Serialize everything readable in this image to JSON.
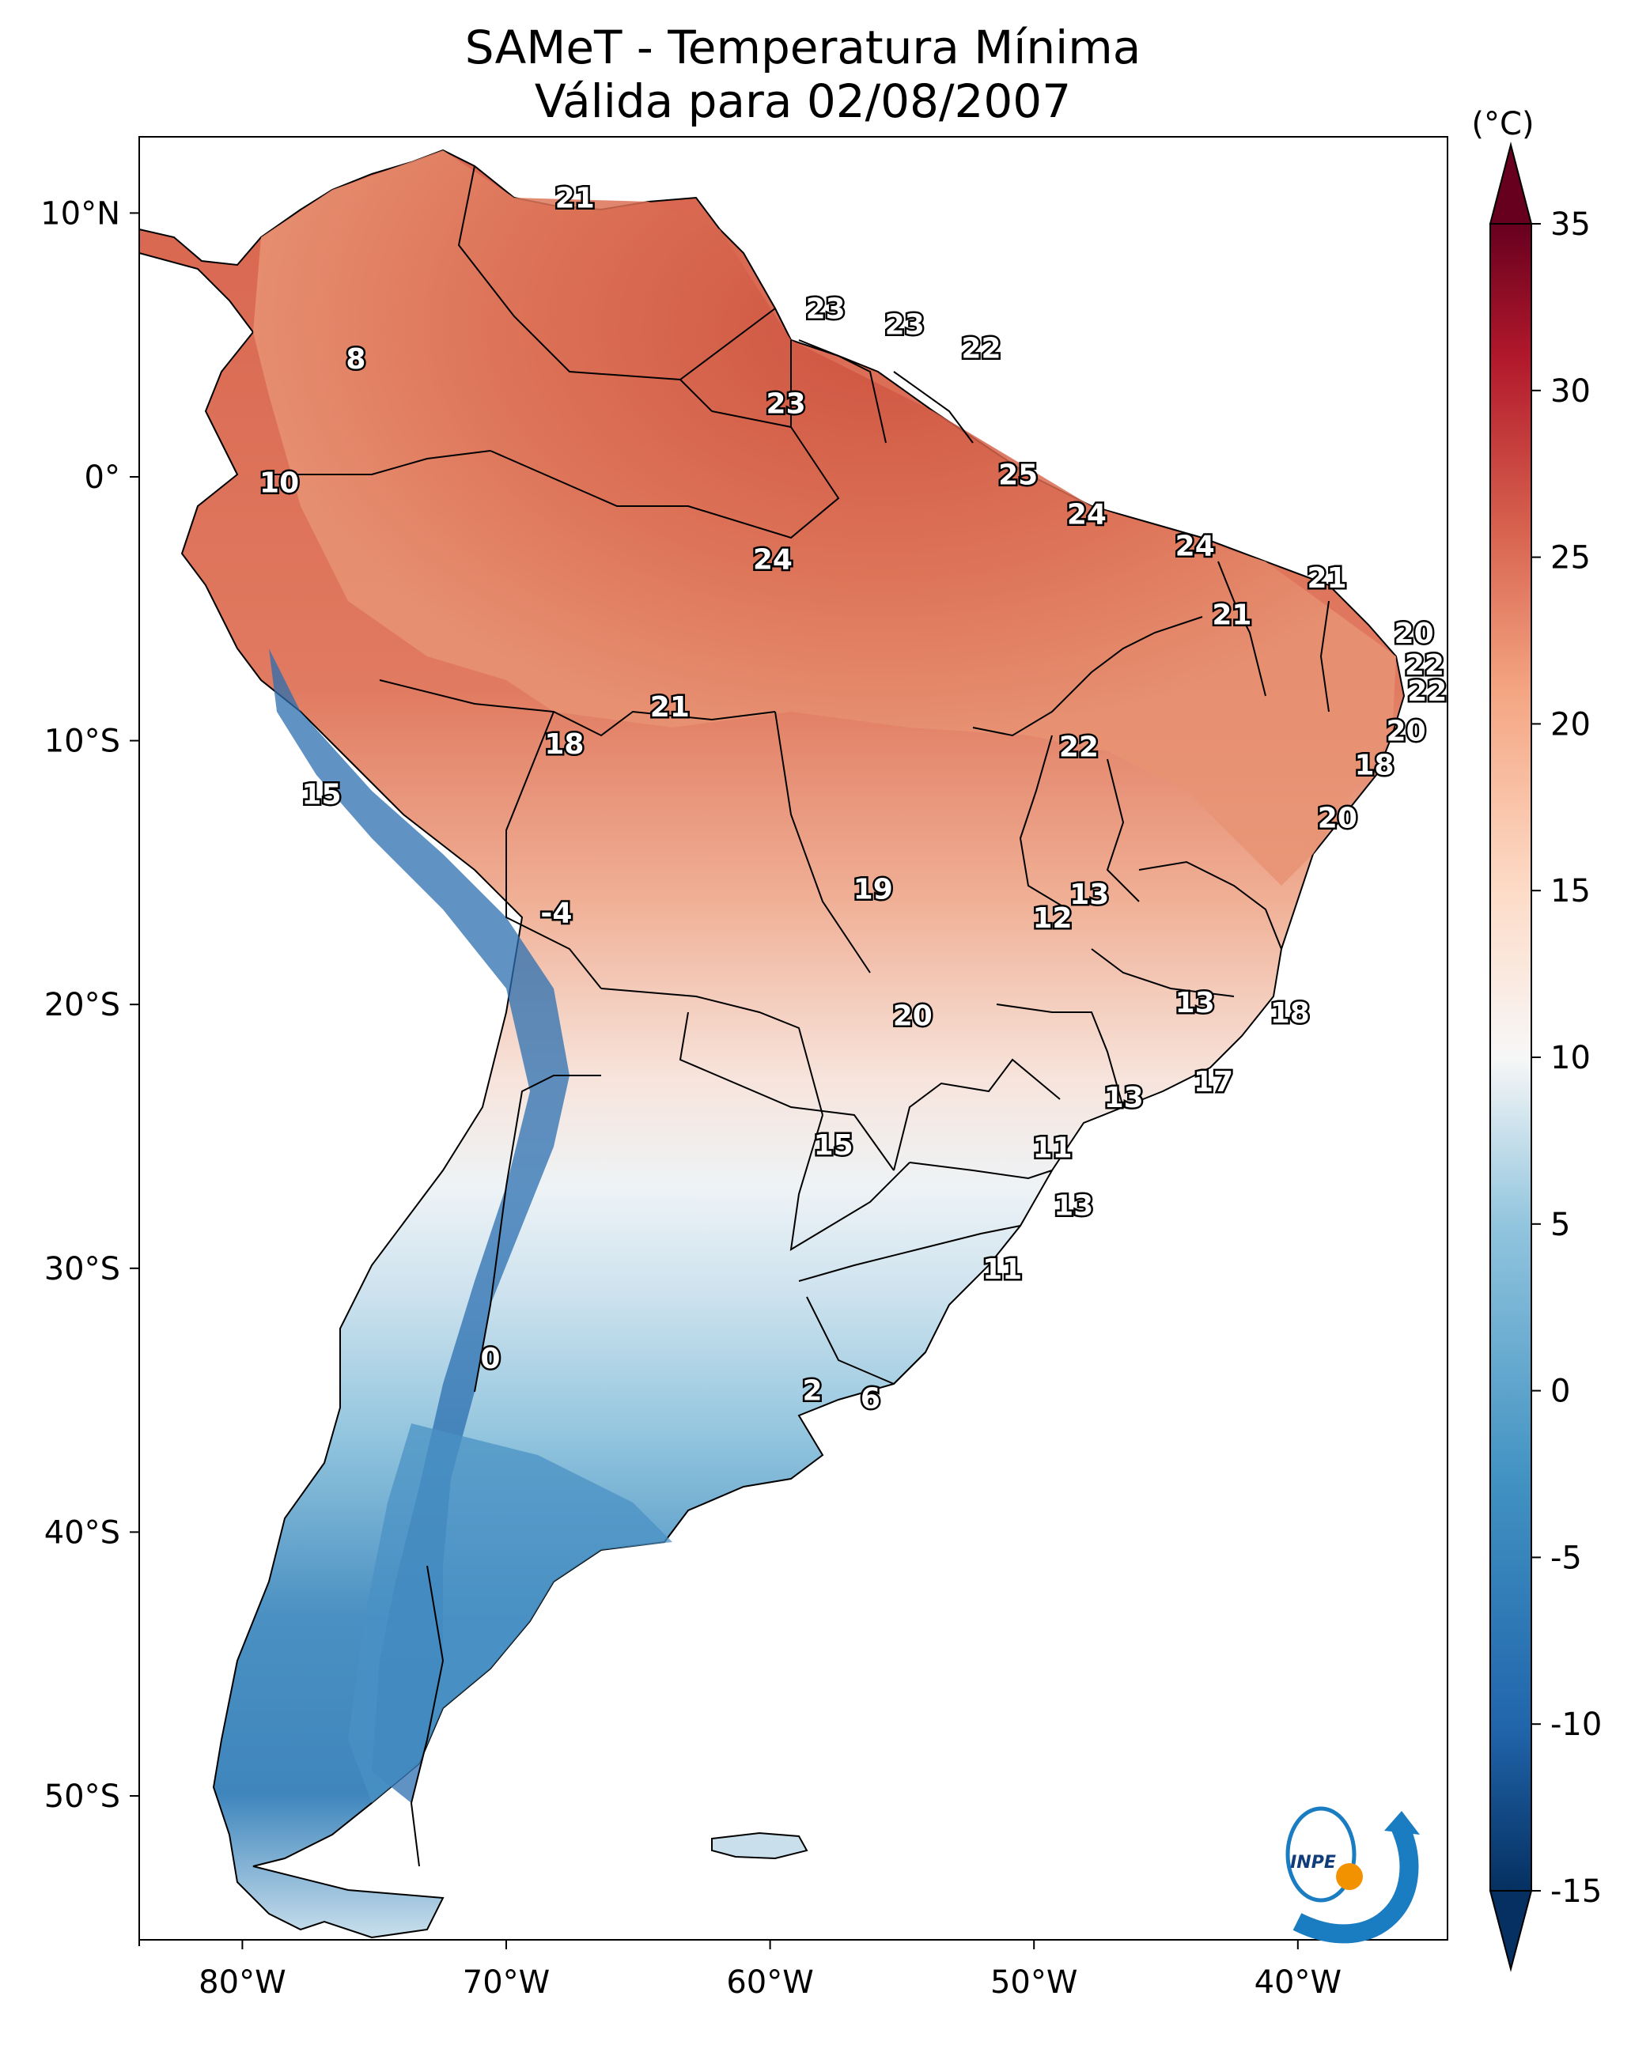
{
  "title": {
    "line1": "SAMeT - Temperatura Mínima",
    "line2": "Válida para 02/08/2007"
  },
  "colorbar": {
    "unit": "(°C)",
    "ticks": [
      "35",
      "30",
      "25",
      "20",
      "15",
      "10",
      "5",
      "0",
      "-5",
      "-10",
      "-15"
    ],
    "range": [
      -15,
      35
    ]
  },
  "axes": {
    "lon_ticks": [
      "80°W",
      "70°W",
      "60°W",
      "50°W",
      "40°W"
    ],
    "lat_ticks": [
      "10°N",
      "0°",
      "10°S",
      "20°S",
      "30°S",
      "40°S",
      "50°S"
    ]
  },
  "logo": {
    "text": "INPE"
  },
  "colors": {
    "warm": "#d6604d",
    "hot": "#b2182b",
    "neutral": "#f7f7f7",
    "cool": "#92c5de",
    "cold": "#2166ac",
    "frame": "#000000"
  },
  "station_labels": [
    {
      "value": "21",
      "lon": -67.4,
      "lat": 10.6
    },
    {
      "value": "8",
      "lon": -75.7,
      "lat": 4.5
    },
    {
      "value": "23",
      "lon": -57.9,
      "lat": 6.4
    },
    {
      "value": "23",
      "lon": -54.9,
      "lat": 5.8
    },
    {
      "value": "22",
      "lon": -52.0,
      "lat": 4.9
    },
    {
      "value": "23",
      "lon": -59.4,
      "lat": 2.8
    },
    {
      "value": "25",
      "lon": -50.6,
      "lat": 0.1
    },
    {
      "value": "10",
      "lon": -78.6,
      "lat": -0.2
    },
    {
      "value": "24",
      "lon": -48.0,
      "lat": -1.4
    },
    {
      "value": "24",
      "lon": -43.9,
      "lat": -2.6
    },
    {
      "value": "24",
      "lon": -59.9,
      "lat": -3.1
    },
    {
      "value": "21",
      "lon": -38.9,
      "lat": -3.8
    },
    {
      "value": "21",
      "lon": -42.5,
      "lat": -5.2
    },
    {
      "value": "20",
      "lon": -35.6,
      "lat": -5.9
    },
    {
      "value": "22",
      "lon": -35.2,
      "lat": -7.1
    },
    {
      "value": "22",
      "lon": -35.1,
      "lat": -8.1
    },
    {
      "value": "21",
      "lon": -63.8,
      "lat": -8.7
    },
    {
      "value": "20",
      "lon": -35.9,
      "lat": -9.6
    },
    {
      "value": "18",
      "lon": -67.8,
      "lat": -10.1
    },
    {
      "value": "22",
      "lon": -48.3,
      "lat": -10.2
    },
    {
      "value": "18",
      "lon": -37.1,
      "lat": -10.9
    },
    {
      "value": "15",
      "lon": -77.0,
      "lat": -12.0
    },
    {
      "value": "20",
      "lon": -38.5,
      "lat": -12.9
    },
    {
      "value": "13",
      "lon": -47.9,
      "lat": -15.8
    },
    {
      "value": "19",
      "lon": -56.1,
      "lat": -15.6
    },
    {
      "value": "12",
      "lon": -49.3,
      "lat": -16.7
    },
    {
      "value": "-4",
      "lon": -68.1,
      "lat": -16.5
    },
    {
      "value": "13",
      "lon": -43.9,
      "lat": -19.9
    },
    {
      "value": "20",
      "lon": -54.6,
      "lat": -20.4
    },
    {
      "value": "18",
      "lon": -40.3,
      "lat": -20.3
    },
    {
      "value": "17",
      "lon": -43.2,
      "lat": -22.9
    },
    {
      "value": "13",
      "lon": -46.6,
      "lat": -23.5
    },
    {
      "value": "15",
      "lon": -57.6,
      "lat": -25.3
    },
    {
      "value": "11",
      "lon": -49.3,
      "lat": -25.4
    },
    {
      "value": "13",
      "lon": -48.5,
      "lat": -27.6
    },
    {
      "value": "11",
      "lon": -51.2,
      "lat": -30.0
    },
    {
      "value": "0",
      "lon": -70.6,
      "lat": -33.4
    },
    {
      "value": "2",
      "lon": -58.4,
      "lat": -34.6
    },
    {
      "value": "6",
      "lon": -56.2,
      "lat": -34.9
    }
  ]
}
